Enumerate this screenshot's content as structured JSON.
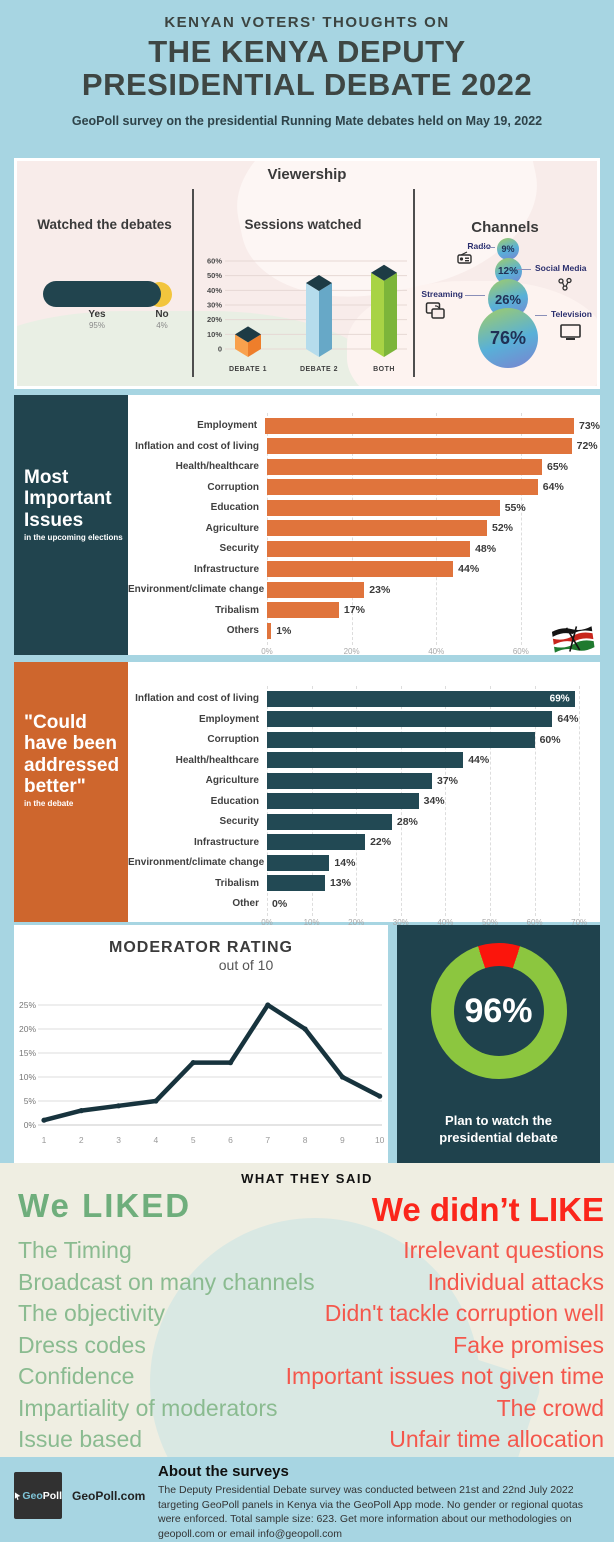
{
  "header": {
    "eyebrow": "KENYAN VOTERS' THOUGHTS ON",
    "title_line1": "THE KENYA DEPUTY",
    "title_line2": "PRESIDENTIAL DEBATE 2022",
    "subtitle": "GeoPoll survey on the presidential Running Mate debates held on May 19, 2022"
  },
  "viewership": {
    "title": "Viewership"
  },
  "sections": {
    "issues": {
      "heading": "Most\nImportant\nIssues",
      "sub": "in the upcoming elections"
    },
    "addressed": {
      "heading": "\"Could\nhave been\naddressed\nbetter\"",
      "sub": "in the debate"
    }
  },
  "chart_data": [
    {
      "id": "watched",
      "type": "bar",
      "title": "Watched the debates",
      "categories": [
        "Yes",
        "No"
      ],
      "values": [
        95,
        4
      ],
      "labels": [
        "95%",
        "4%"
      ]
    },
    {
      "id": "sessions",
      "type": "bar",
      "title": "Sessions watched",
      "categories": [
        "DEBATE 1",
        "DEBATE 2",
        "BOTH"
      ],
      "values": [
        10,
        45,
        52
      ],
      "ylim": [
        0,
        60
      ],
      "yticks": [
        "0",
        "10%",
        "20%",
        "30%",
        "40%",
        "50%",
        "60%"
      ]
    },
    {
      "id": "channels",
      "type": "bubble",
      "title": "Channels",
      "categories": [
        "Radio",
        "Social Media",
        "Streaming",
        "Television"
      ],
      "values": [
        9,
        12,
        26,
        76
      ],
      "labels": [
        "9%",
        "12%",
        "26%",
        "76%"
      ]
    },
    {
      "id": "important_issues",
      "type": "bar",
      "title": "Most Important Issues in the upcoming elections",
      "categories": [
        "Employment",
        "Inflation and cost of living",
        "Health/healthcare",
        "Corruption",
        "Education",
        "Agriculture",
        "Security",
        "Infrastructure",
        "Environment/climate change",
        "Tribalism",
        "Others"
      ],
      "values": [
        73,
        72,
        65,
        64,
        55,
        52,
        48,
        44,
        23,
        17,
        1
      ],
      "xticks": [
        "0%",
        "20%",
        "40%",
        "60%"
      ],
      "xtick_values": [
        0,
        20,
        40,
        60
      ],
      "xlim": [
        0,
        78
      ],
      "bar_color": "#e0743c"
    },
    {
      "id": "addressed_better",
      "type": "bar",
      "title": "\"Could have been addressed better\" in the debate",
      "categories": [
        "Inflation and cost of living",
        "Employment",
        "Corruption",
        "Health/healthcare",
        "Agriculture",
        "Education",
        "Security",
        "Infrastructure",
        "Environment/climate change",
        "Tribalism",
        "Other"
      ],
      "values": [
        69,
        64,
        60,
        44,
        37,
        34,
        28,
        22,
        14,
        13,
        0
      ],
      "xticks": [
        "0%",
        "10%",
        "20%",
        "30%",
        "40%",
        "50%",
        "60%",
        "70%"
      ],
      "xtick_values": [
        0,
        10,
        20,
        30,
        40,
        50,
        60,
        70
      ],
      "xlim": [
        0,
        74
      ],
      "bar_color": "#224954",
      "first_label_inside": true
    },
    {
      "id": "moderator",
      "type": "line",
      "title": "MODERATOR RATING",
      "subtitle": "out of 10",
      "x": [
        1,
        2,
        3,
        4,
        5,
        6,
        7,
        8,
        9,
        10
      ],
      "values": [
        1,
        3,
        4,
        5,
        13,
        13,
        25,
        20,
        10,
        6
      ],
      "yticks": [
        "0%",
        "5%",
        "10%",
        "15%",
        "20%",
        "25%"
      ],
      "ylim": [
        0,
        25
      ]
    },
    {
      "id": "plan_to_watch",
      "type": "pie",
      "categories": [
        "Plan to watch",
        "Do not"
      ],
      "values": [
        96,
        4
      ],
      "labels": [
        "96%"
      ],
      "caption": "Plan to watch the\npresidential debate",
      "colors": {
        "green": "#8cc63f",
        "red": "#fb150c"
      }
    }
  ],
  "what_they_said": {
    "header": "WHAT THEY SAID",
    "liked_title": "We LIKED",
    "disliked_title": "We didn’t LIKE",
    "liked": [
      "The Timing",
      "Broadcast on many channels",
      "The objectivity",
      "Dress codes",
      "Confidence",
      "Impartiality of moderators",
      "Issue based"
    ],
    "disliked": [
      "Irrelevant questions",
      "Individual attacks",
      "Didn't tackle corruption well",
      "Fake promises",
      "Important issues not given time",
      "The crowd",
      "Unfair time allocation"
    ]
  },
  "footer": {
    "logo_part1": "Geo",
    "logo_part2": "Poll",
    "logo_caption": "GeoPoll.com",
    "about_title": "About the surveys",
    "about_body": "The Deputy Presidential Debate survey was conducted between 21st and 22nd July 2022 targeting GeoPoll panels in Kenya via the GeoPoll App mode. No gender or regional quotas were enforced. Total sample size: 623.  Get more information about our methodologies on geopoll.com or email info@geopoll.com"
  }
}
